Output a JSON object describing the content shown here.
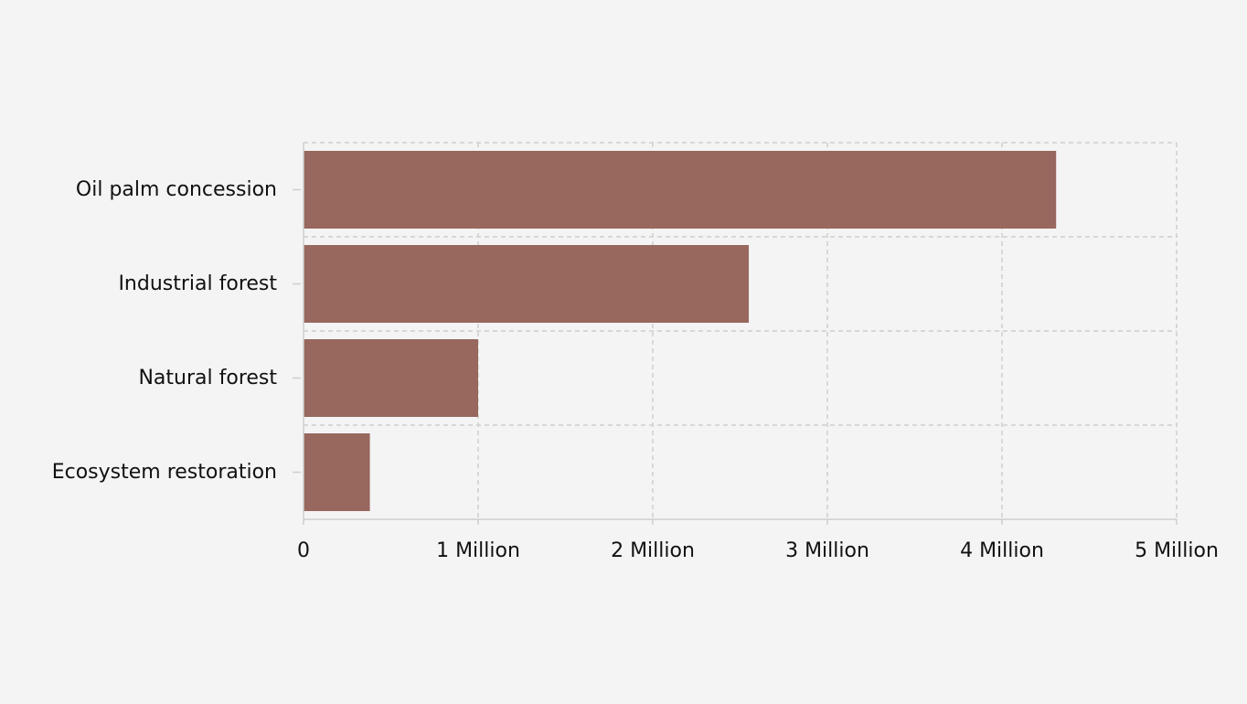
{
  "chart_data": {
    "type": "bar",
    "orientation": "horizontal",
    "title": "",
    "xlabel": "",
    "ylabel": "",
    "categories": [
      "Oil palm concession",
      "Industrial forest",
      "Natural forest",
      "Ecosystem restoration"
    ],
    "values": [
      4310000,
      2550000,
      1000000,
      380000
    ],
    "xlim": [
      0,
      5000000
    ],
    "x_ticks": [
      {
        "value": 0,
        "label": "0"
      },
      {
        "value": 1000000,
        "label": "1 Million"
      },
      {
        "value": 2000000,
        "label": "2 Million"
      },
      {
        "value": 3000000,
        "label": "3 Million"
      },
      {
        "value": 4000000,
        "label": "4 Million"
      },
      {
        "value": 5000000,
        "label": "5 Million"
      }
    ],
    "bar_color": "#98675e",
    "grid": true,
    "legend": "none"
  }
}
